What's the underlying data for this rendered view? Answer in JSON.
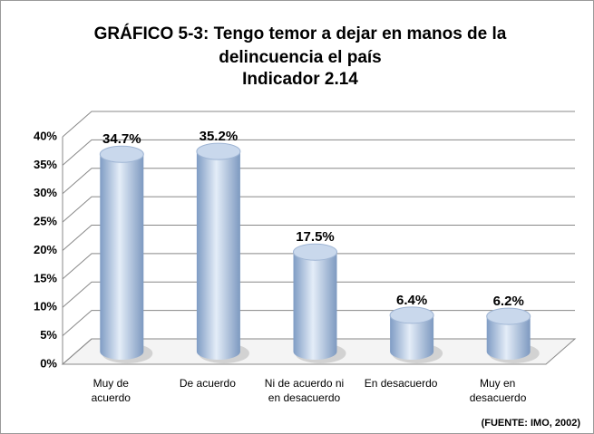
{
  "chart_data": {
    "type": "bar",
    "title": "GRÁFICO 5-3: Tengo temor a dejar en manos de la delincuencia el país",
    "subtitle": "Indicador 2.14",
    "categories": [
      "Muy de acuerdo",
      "De acuerdo",
      "Ni de acuerdo ni en desacuerdo",
      "En desacuerdo",
      "Muy en desacuerdo"
    ],
    "values": [
      34.7,
      35.2,
      17.5,
      6.4,
      6.2
    ],
    "value_labels": [
      "34.7%",
      "35.2%",
      "17.5%",
      "6.4%",
      "6.2%"
    ],
    "color": "#9db8da",
    "ylim": [
      0,
      40
    ],
    "yticks": [
      {
        "value": 0,
        "label": "0%"
      },
      {
        "value": 5,
        "label": "5%"
      },
      {
        "value": 10,
        "label": "10%"
      },
      {
        "value": 15,
        "label": "15%"
      },
      {
        "value": 20,
        "label": "20%"
      },
      {
        "value": 25,
        "label": "25%"
      },
      {
        "value": 30,
        "label": "30%"
      },
      {
        "value": 35,
        "label": "35%"
      },
      {
        "value": 40,
        "label": "40%"
      }
    ],
    "grid": true,
    "annotation": "(FUENTE: IMO, 2002)"
  }
}
